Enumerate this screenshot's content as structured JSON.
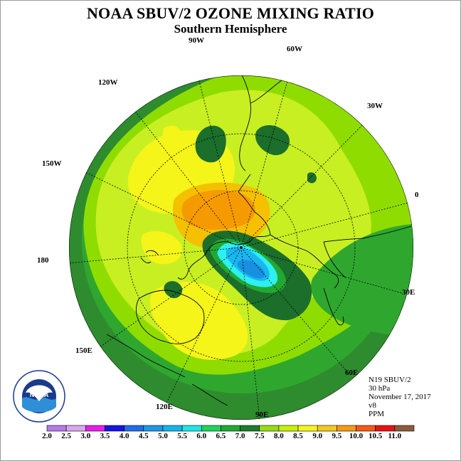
{
  "header": {
    "title": "NOAA SBUV/2 OZONE MIXING RATIO",
    "subtitle": "Southern Hemisphere"
  },
  "map": {
    "projection": "south-polar-stereographic",
    "longitude_labels": [
      "90W",
      "60W",
      "30W",
      "0",
      "30E",
      "60E",
      "90E",
      "120E",
      "150E",
      "180",
      "150W",
      "120W"
    ],
    "colors": {
      "ocean_band_dark": "#2e8c2e",
      "mid_green": "#2fa72f",
      "light_green": "#8fdc00",
      "yellow_green": "#c8ef22",
      "yellow": "#f5f51a",
      "orange_light": "#f5c000",
      "orange": "#f59a00",
      "dark_green": "#1c6e2b",
      "cyan": "#2ef0f0",
      "light_blue": "#1ab6f0",
      "blue": "#1890e0"
    }
  },
  "info": {
    "satellite": "N19 SBUV/2",
    "level": "30 hPa",
    "date": "November 17, 2017",
    "version": "v8",
    "units": "PPM"
  },
  "colorbar": {
    "labels": [
      "2.0",
      "2.5",
      "3.0",
      "3.5",
      "4.0",
      "4.5",
      "5.0",
      "5.5",
      "6.0",
      "6.5",
      "7.0",
      "7.5",
      "8.0",
      "8.5",
      "9.0",
      "9.5",
      "10.0",
      "10.5",
      "11.0"
    ],
    "colors": [
      "#b47ae6",
      "#d9a6ee",
      "#e61ee6",
      "#1414e6",
      "#1e6ee6",
      "#1e96e6",
      "#14b4ea",
      "#1ee6e6",
      "#1ed25a",
      "#22a832",
      "#1a7f2a",
      "#96dc14",
      "#c8f000",
      "#f5f51e",
      "#f5c81e",
      "#f59a14",
      "#f55a14",
      "#e61414",
      "#8c5a3c"
    ]
  },
  "logo": {
    "text": "NOAA",
    "ring_text": "NATIONAL OCEANIC AND ATMOSPHERIC ADMINISTRATION",
    "bottom_text": "U.S. DEPARTMENT OF COMMERCE"
  }
}
